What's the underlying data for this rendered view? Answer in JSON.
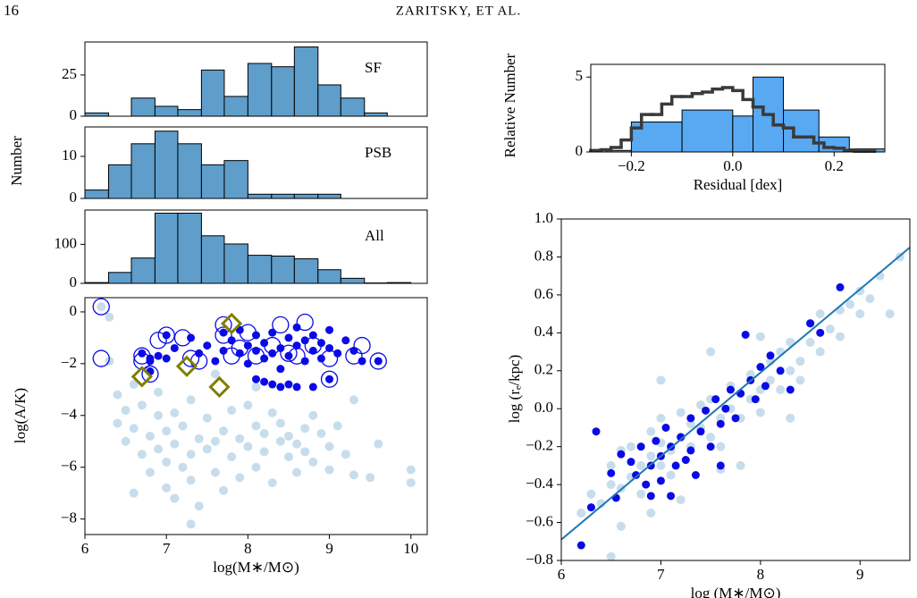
{
  "header": {
    "page_number": "16",
    "running_head": "ZARITSKY, ET AL."
  },
  "chart_data": [
    {
      "type": "histogram",
      "annotation": "SF",
      "bins": [
        6,
        6.29,
        6.57,
        6.86,
        7.14,
        7.43,
        7.71,
        8,
        8.29,
        8.57,
        8.86,
        9.14,
        9.43,
        9.71,
        10
      ],
      "values": [
        2,
        0,
        11,
        6,
        4,
        28,
        12,
        32,
        30,
        42,
        19,
        11,
        2,
        0
      ],
      "color": "#5f9dca",
      "xlim": [
        6,
        10.2
      ],
      "ylim": [
        0,
        45
      ],
      "yticks": [
        0,
        25
      ]
    },
    {
      "type": "histogram",
      "ylabel": "Number",
      "annotation": "PSB",
      "bins": [
        6,
        6.29,
        6.57,
        6.86,
        7.14,
        7.43,
        7.71,
        8,
        8.29,
        8.57,
        8.86,
        9.14,
        9.43,
        9.71,
        10
      ],
      "values": [
        2,
        8,
        13,
        16,
        13,
        8,
        9,
        1,
        1,
        1,
        1,
        0,
        0,
        0
      ],
      "color": "#5f9dca",
      "xlim": [
        6,
        10.2
      ],
      "ylim": [
        0,
        17
      ],
      "yticks": [
        0,
        10
      ]
    },
    {
      "type": "histogram",
      "annotation": "All",
      "bins": [
        6,
        6.29,
        6.57,
        6.86,
        7.14,
        7.43,
        7.71,
        8,
        8.29,
        8.57,
        8.86,
        9.14,
        9.43,
        9.71,
        10
      ],
      "values": [
        2,
        28,
        65,
        180,
        180,
        122,
        101,
        72,
        70,
        63,
        35,
        13,
        1,
        2
      ],
      "color": "#5f9dca",
      "xlim": [
        6,
        10.2
      ],
      "ylim": [
        0,
        188
      ],
      "yticks": [
        0,
        100
      ]
    },
    {
      "type": "scatter",
      "xlabel": "log(M∗/M⊙)",
      "ylabel": "log(A/K)",
      "xlim": [
        6,
        10.2
      ],
      "ylim": [
        -8.6,
        0.55
      ],
      "xticks": [
        6,
        7,
        8,
        9,
        10
      ],
      "yticks": [
        0,
        {
          "value": -2,
          "label": "−2"
        },
        {
          "value": -4,
          "label": "−4"
        },
        {
          "value": -6,
          "label": "−6"
        },
        {
          "value": -8,
          "label": "−8"
        }
      ],
      "series": [
        {
          "marker": "dot",
          "color": "#1f77b4",
          "opacity": 0.25,
          "x": [
            6.2,
            6.3,
            6.3,
            6.4,
            6.4,
            6.5,
            6.5,
            6.6,
            6.6,
            6.7,
            6.7,
            6.8,
            6.8,
            6.9,
            6.9,
            6.9,
            7.0,
            7.0,
            7.0,
            7.1,
            7.1,
            7.1,
            7.2,
            7.2,
            7.3,
            7.3,
            7.3,
            7.4,
            7.4,
            7.5,
            7.5,
            7.6,
            7.6,
            7.7,
            7.7,
            7.8,
            7.8,
            7.9,
            7.9,
            8.0,
            8.0,
            8.1,
            8.1,
            8.2,
            8.2,
            8.3,
            8.3,
            8.4,
            8.4,
            8.5,
            8.5,
            8.6,
            8.6,
            8.7,
            8.7,
            8.8,
            8.8,
            8.9,
            9.0,
            9.0,
            9.1,
            9.2,
            9.3,
            9.3,
            9.5,
            9.6,
            10.0,
            10.0,
            7.3,
            6.6,
            7.6,
            8.1
          ],
          "values": [
            0.2,
            -0.2,
            -1.9,
            -3.2,
            -4.3,
            -3.8,
            -5.0,
            -4.5,
            -2.8,
            -5.5,
            -3.6,
            -4.8,
            -6.2,
            -4.0,
            -5.3,
            -3.1,
            -4.6,
            -5.8,
            -6.8,
            -5.1,
            -3.9,
            -7.2,
            -4.4,
            -6.0,
            -5.5,
            -3.4,
            -6.5,
            -4.9,
            -7.5,
            -5.3,
            -4.1,
            -6.2,
            -5.0,
            -4.6,
            -6.9,
            -5.6,
            -3.8,
            -4.9,
            -6.4,
            -5.2,
            -3.6,
            -4.4,
            -6.0,
            -5.4,
            -4.7,
            -6.6,
            -3.9,
            -5.0,
            -4.3,
            -5.6,
            -4.8,
            -5.1,
            -6.2,
            -4.5,
            -5.4,
            -4.0,
            -5.8,
            -4.7,
            -5.2,
            -6.1,
            -4.4,
            -5.5,
            -3.4,
            -6.3,
            -6.4,
            -5.1,
            -6.1,
            -6.6,
            -8.2,
            -7.0,
            -2.4,
            -2.9
          ]
        },
        {
          "marker": "dot",
          "color": "#0a0ae6",
          "opacity": 1,
          "x": [
            6.7,
            6.8,
            6.9,
            7.0,
            7.1,
            7.3,
            7.5,
            7.6,
            7.7,
            7.7,
            7.8,
            7.9,
            7.9,
            8.0,
            8.0,
            8.1,
            8.1,
            8.2,
            8.2,
            8.3,
            8.3,
            8.4,
            8.4,
            8.5,
            8.5,
            8.6,
            8.6,
            8.7,
            8.7,
            8.8,
            8.8,
            8.9,
            8.9,
            9.0,
            9.0,
            9.1,
            9.2,
            9.3,
            9.4,
            9.6,
            8.1,
            8.2,
            8.3,
            8.4,
            8.5,
            8.6,
            8.8,
            9.0,
            7.4,
            7.0,
            6.8,
            6.8
          ],
          "values": [
            -1.6,
            -1.8,
            -1.7,
            -0.9,
            -1.4,
            -1.0,
            -1.3,
            -1.9,
            -0.8,
            -1.5,
            -1.1,
            -1.6,
            -0.7,
            -1.3,
            -2.0,
            -1.5,
            -0.9,
            -1.8,
            -1.2,
            -1.6,
            -0.8,
            -1.4,
            -2.2,
            -1.0,
            -1.7,
            -1.3,
            -0.6,
            -1.9,
            -1.1,
            -1.5,
            -0.9,
            -1.2,
            -1.8,
            -1.4,
            -0.7,
            -1.6,
            -1.1,
            -1.5,
            -1.9,
            -1.9,
            -2.6,
            -2.7,
            -2.8,
            -2.9,
            -2.8,
            -2.9,
            -2.9,
            -2.6,
            -1.6,
            -1.8,
            -1.9,
            -2.3
          ]
        },
        {
          "marker": "ring",
          "color": "#0a0ae6",
          "opacity": 1,
          "x": [
            6.2,
            6.2,
            6.7,
            6.7,
            6.9,
            7.0,
            7.3,
            7.4,
            7.7,
            7.7,
            7.8,
            7.9,
            8.0,
            8.1,
            8.3,
            8.4,
            8.6,
            8.7,
            8.8,
            9.0,
            9.0,
            9.3,
            9.4,
            9.6,
            6.8,
            7.2,
            8.5
          ],
          "values": [
            0.2,
            -1.8,
            -1.7,
            -1.9,
            -1.1,
            -0.9,
            -1.8,
            -1.9,
            -0.9,
            -0.5,
            -1.7,
            -1.4,
            -0.8,
            -1.7,
            -1.3,
            -0.5,
            -1.7,
            -0.4,
            -1.3,
            -1.8,
            -2.6,
            -1.7,
            -1.3,
            -1.9,
            -2.4,
            -1.0,
            -1.6
          ]
        },
        {
          "marker": "diamond",
          "color": "#7f7f00",
          "opacity": 1,
          "x": [
            6.7,
            7.25,
            7.65,
            7.8
          ],
          "values": [
            -2.5,
            -2.1,
            -2.9,
            -0.45
          ]
        }
      ]
    },
    {
      "type": "histogram",
      "xlabel": "Residual [dex]",
      "ylabel": "Relative Number",
      "xlim": [
        -0.28,
        0.3
      ],
      "ylim": [
        0,
        5.85
      ],
      "xticks": [
        {
          "value": -0.2,
          "label": "−0.2"
        },
        {
          "value": 0,
          "label": "0.0"
        },
        0.2
      ],
      "yticks": [
        0,
        5
      ],
      "bins": [
        -0.25,
        -0.2,
        -0.1,
        0,
        0.04,
        0.1,
        0.17,
        0.23,
        0.3
      ],
      "values": [
        0.1,
        2.0,
        2.8,
        2.4,
        5.0,
        2.8,
        1.0,
        0.2
      ],
      "color": "#58a8f2",
      "step": {
        "color": "#3a3a3a",
        "bins": [
          -0.28,
          -0.26,
          -0.24,
          -0.22,
          -0.2,
          -0.18,
          -0.16,
          -0.14,
          -0.12,
          -0.1,
          -0.08,
          -0.06,
          -0.04,
          -0.02,
          0,
          0.02,
          0.04,
          0.06,
          0.08,
          0.1,
          0.12,
          0.14,
          0.16,
          0.18,
          0.2,
          0.22,
          0.24,
          0.26,
          0.28
        ],
        "values": [
          0.1,
          0.15,
          0.3,
          0.8,
          1.6,
          2.5,
          2.5,
          3.2,
          3.7,
          3.7,
          3.9,
          4.0,
          4.2,
          4.3,
          4.1,
          3.5,
          3.0,
          2.5,
          1.8,
          1.6,
          1.0,
          1.0,
          0.6,
          0.3,
          0.25,
          0.1,
          0.05,
          0.05
        ]
      }
    },
    {
      "type": "scatter",
      "xlabel": "log (M∗/M⊙)",
      "ylabel": "log (rₑ/kpc)",
      "xlim": [
        6,
        9.5
      ],
      "ylim": [
        -0.8,
        1.0
      ],
      "xticks": [
        6,
        7,
        8,
        9
      ],
      "yticks": [
        {
          "value": -0.8,
          "label": "−0.8"
        },
        {
          "value": -0.6,
          "label": "−0.6"
        },
        {
          "value": -0.4,
          "label": "−0.4"
        },
        {
          "value": -0.2,
          "label": "−0.2"
        },
        {
          "value": 0,
          "label": "0.0"
        },
        0.2,
        0.4,
        0.6,
        0.8,
        {
          "value": 1,
          "label": "1.0"
        }
      ],
      "series": [
        {
          "marker": "dot",
          "color": "#1f77b4",
          "opacity": 0.25,
          "x": [
            6.2,
            6.3,
            6.4,
            6.5,
            6.5,
            6.6,
            6.6,
            6.7,
            6.7,
            6.8,
            6.8,
            6.9,
            6.9,
            7.0,
            7.0,
            7.0,
            7.1,
            7.1,
            7.2,
            7.2,
            7.3,
            7.3,
            7.4,
            7.4,
            7.5,
            7.5,
            7.6,
            7.6,
            7.7,
            7.7,
            7.8,
            7.8,
            7.9,
            7.9,
            8.0,
            8.0,
            8.1,
            8.1,
            8.2,
            8.2,
            8.3,
            8.3,
            8.4,
            8.4,
            8.5,
            8.5,
            8.6,
            8.6,
            8.7,
            8.8,
            8.8,
            8.9,
            9.0,
            9.0,
            9.1,
            9.2,
            9.3,
            9.4,
            6.9,
            7.6,
            7.0,
            7.5,
            8.0,
            6.6,
            6.5,
            7.8,
            8.3,
            7.2
          ],
          "values": [
            -0.55,
            -0.45,
            -0.5,
            -0.4,
            -0.3,
            -0.42,
            -0.22,
            -0.36,
            -0.2,
            -0.3,
            -0.45,
            -0.25,
            -0.12,
            -0.3,
            -0.18,
            -0.05,
            -0.22,
            -0.35,
            -0.15,
            -0.02,
            -0.2,
            -0.08,
            -0.1,
            0.02,
            -0.15,
            0.05,
            -0.05,
            -0.2,
            0.0,
            0.12,
            -0.05,
            0.08,
            0.05,
            0.18,
            0.1,
            -0.02,
            0.15,
            0.25,
            0.1,
            0.3,
            0.2,
            0.35,
            0.25,
            0.15,
            0.35,
            0.45,
            0.3,
            0.5,
            0.42,
            0.52,
            0.38,
            0.55,
            0.5,
            0.62,
            0.58,
            0.7,
            0.5,
            0.8,
            -0.55,
            -0.32,
            0.15,
            0.3,
            0.38,
            -0.62,
            -0.78,
            -0.3,
            -0.05,
            -0.48
          ]
        },
        {
          "marker": "dot",
          "color": "#0a0ae6",
          "opacity": 1,
          "x": [
            6.2,
            6.3,
            6.35,
            6.5,
            6.55,
            6.6,
            6.7,
            6.75,
            6.8,
            6.85,
            6.9,
            6.95,
            7.0,
            7.0,
            7.05,
            7.1,
            7.1,
            7.15,
            7.2,
            7.25,
            7.3,
            7.3,
            7.35,
            7.4,
            7.45,
            7.5,
            7.55,
            7.6,
            7.65,
            7.7,
            7.75,
            7.8,
            7.85,
            7.9,
            7.95,
            8.0,
            8.05,
            8.1,
            8.2,
            8.3,
            8.5,
            8.6,
            8.8,
            6.9,
            7.6
          ],
          "values": [
            -0.72,
            -0.52,
            -0.12,
            -0.34,
            -0.47,
            -0.24,
            -0.28,
            -0.35,
            -0.2,
            -0.4,
            -0.3,
            -0.17,
            -0.25,
            -0.38,
            -0.1,
            -0.46,
            -0.2,
            -0.3,
            -0.15,
            -0.27,
            -0.05,
            -0.22,
            -0.35,
            -0.12,
            -0.01,
            -0.2,
            0.05,
            -0.08,
            0.0,
            0.1,
            -0.05,
            0.08,
            0.39,
            0.15,
            0.05,
            0.22,
            0.12,
            0.28,
            0.2,
            0.1,
            0.45,
            0.4,
            0.64,
            -0.46,
            -0.3
          ]
        },
        {
          "type": "line",
          "color": "#1f77b4",
          "x": [
            6,
            9.5
          ],
          "values": [
            -0.69,
            0.85
          ]
        }
      ]
    }
  ]
}
